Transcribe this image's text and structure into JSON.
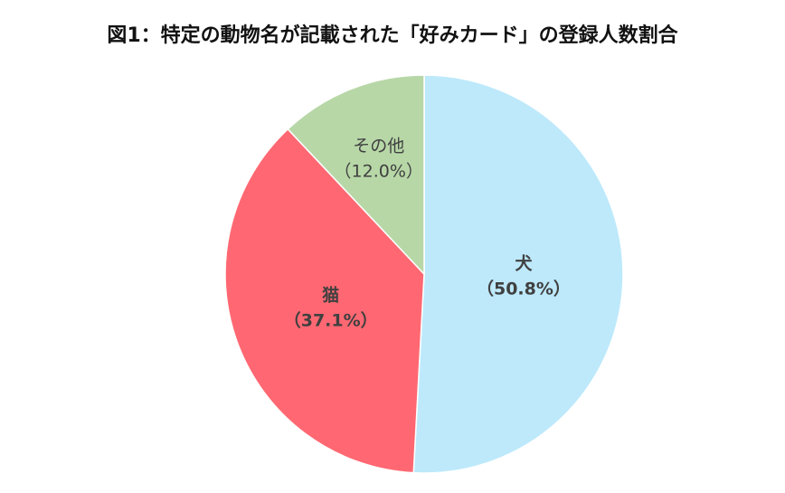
{
  "chart_data": {
    "type": "pie",
    "title": "図1：特定の動物名が記載された「好みカード」の登録人数割合",
    "categories": [
      "犬",
      "猫",
      "その他"
    ],
    "values": [
      50.8,
      37.1,
      12.0
    ],
    "value_labels": [
      "（50.8%）",
      "（37.1%）",
      "（12.0%）"
    ],
    "colors": [
      "#bde9fb",
      "#ff6872",
      "#b7d7a7"
    ]
  }
}
